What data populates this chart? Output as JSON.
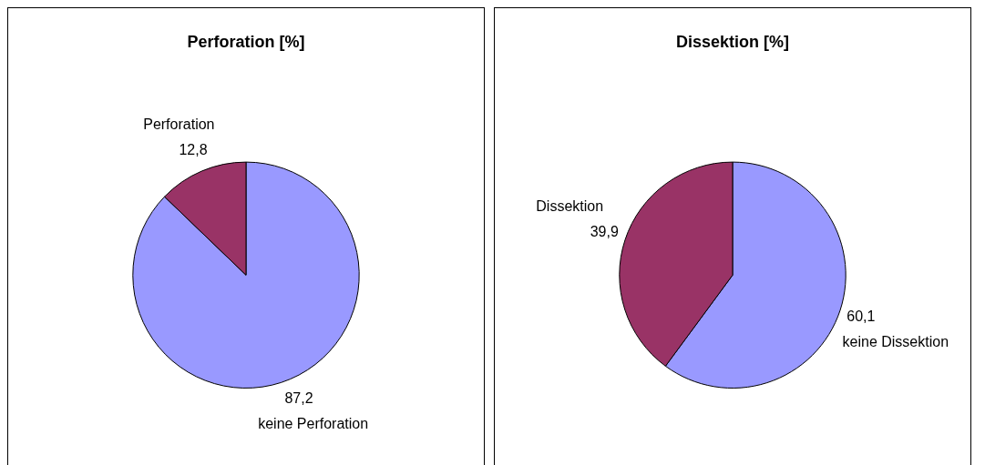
{
  "chart_data": [
    {
      "type": "pie",
      "title": "Perforation [%]",
      "categories": [
        "keine Perforation",
        "Perforation"
      ],
      "values": [
        87.2,
        12.8
      ],
      "colors": [
        "#9999ff",
        "#993366"
      ],
      "value_labels": [
        "87,2",
        "12,8"
      ],
      "legend": false
    },
    {
      "type": "pie",
      "title": "Dissektion [%]",
      "categories": [
        "keine Dissektion",
        "Dissektion"
      ],
      "values": [
        60.1,
        39.9
      ],
      "colors": [
        "#9999ff",
        "#993366"
      ],
      "value_labels": [
        "60,1",
        "39,9"
      ],
      "legend": false
    }
  ]
}
